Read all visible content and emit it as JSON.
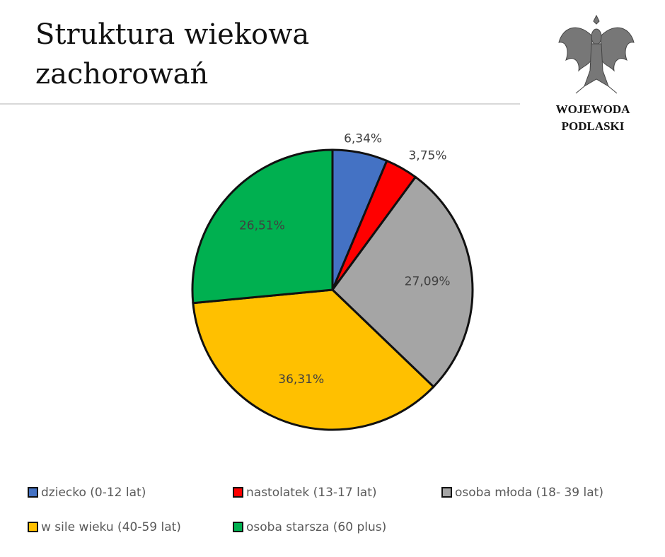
{
  "chart_data": {
    "type": "pie",
    "title": "Struktura wiekowa zachorowań",
    "categories": [
      "dziecko (0-12 lat)",
      "nastolatek (13-17 lat)",
      "osoba młoda (18- 39 lat)",
      "w sile wieku (40-59 lat)",
      "osoba starsza (60 plus)"
    ],
    "values": [
      6.34,
      3.75,
      27.09,
      36.31,
      26.51
    ],
    "value_labels": [
      "6,34%",
      "3,75%",
      "27,09%",
      "36,31%",
      "26,51%"
    ],
    "colors": [
      "#4472c4",
      "#ff0000",
      "#a5a5a5",
      "#ffc000",
      "#00b050"
    ],
    "legend": "bottom"
  },
  "logo_text": [
    "WOJEWODA",
    "PODLASKI"
  ]
}
